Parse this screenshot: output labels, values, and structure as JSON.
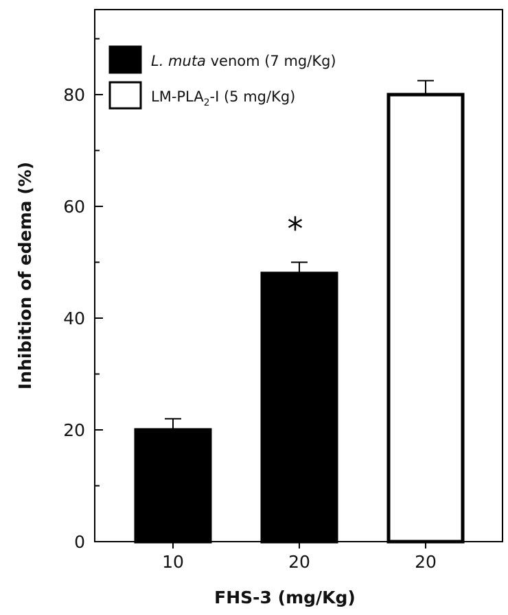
{
  "chart_data": {
    "type": "bar",
    "xlabel": "FHS-3 (mg/Kg)",
    "ylabel": "Inhibition of edema (%)",
    "ylim": [
      0,
      95
    ],
    "yticks": [
      0,
      20,
      40,
      60,
      80
    ],
    "categories": [
      "10",
      "20",
      "20"
    ],
    "bars": [
      {
        "category": "10",
        "value": 20,
        "error": 2,
        "series": "venom"
      },
      {
        "category": "20",
        "value": 48,
        "error": 2,
        "series": "venom",
        "annotation": "*"
      },
      {
        "category": "20",
        "value": 80,
        "error": 2.5,
        "series": "pla2"
      }
    ],
    "series": [
      {
        "id": "venom",
        "name_italic": "L. muta",
        "name_rest": " venom (7 mg/Kg)",
        "fill": "#000000"
      },
      {
        "id": "pla2",
        "name_prefix": "LM-PLA",
        "name_sub": "2",
        "name_rest": "-I (5 mg/Kg)",
        "fill": "#ffffff"
      }
    ],
    "legend_position": "top-left",
    "grid": false,
    "colors": {
      "bar_dark": "#000000",
      "bar_light": "#ffffff",
      "axis": "#000000"
    }
  }
}
